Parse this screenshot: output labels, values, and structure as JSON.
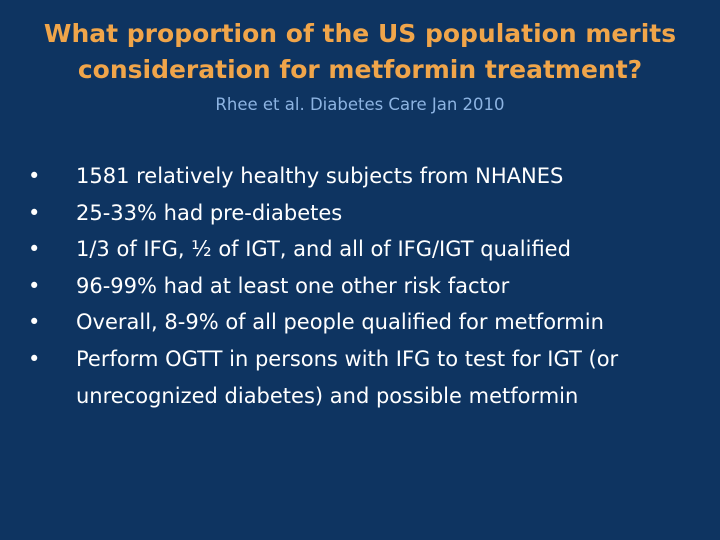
{
  "slide": {
    "title_line1": "What proportion of the US population merits",
    "title_line2": "consideration for metformin treatment?",
    "subtitle": "Rhee et al. Diabetes Care Jan 2010",
    "bullet_glyph": "•",
    "bullets": [
      "1581 relatively healthy subjects from NHANES",
      "25-33% had pre-diabetes",
      "1/3 of IFG, ½ of IGT, and all of IFG/IGT qualified",
      "96-99% had at least one other risk factor",
      "Overall, 8-9% of all people qualified for metformin",
      "Perform OGTT in persons with IFG to test for IGT (or unrecognized diabetes) and possible metformin"
    ]
  },
  "colors": {
    "background": "#0e3461",
    "title": "#f0a54a",
    "subtitle": "#8db4e2",
    "body_text": "#ffffff"
  }
}
